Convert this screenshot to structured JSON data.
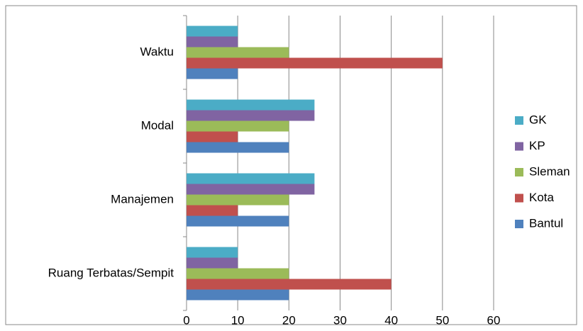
{
  "chart_data": {
    "type": "bar",
    "orientation": "horizontal",
    "categories": [
      "Ruang Terbatas/Sempit",
      "Manajemen",
      "Modal",
      "Waktu"
    ],
    "series": [
      {
        "name": "GK",
        "color": "#4bacc6",
        "values": [
          10,
          25,
          25,
          10
        ]
      },
      {
        "name": "KP",
        "color": "#8064a2",
        "values": [
          10,
          25,
          25,
          10
        ]
      },
      {
        "name": "Sleman",
        "color": "#9bbb59",
        "values": [
          20,
          20,
          20,
          20
        ]
      },
      {
        "name": "Kota",
        "color": "#c0504d",
        "values": [
          40,
          10,
          10,
          50
        ]
      },
      {
        "name": "Bantul",
        "color": "#4f81bd",
        "values": [
          20,
          20,
          20,
          10
        ]
      }
    ],
    "xlim": [
      0,
      60
    ],
    "xticks": [
      0,
      10,
      20,
      30,
      40,
      50,
      60
    ],
    "grid": true,
    "legend": "right"
  }
}
